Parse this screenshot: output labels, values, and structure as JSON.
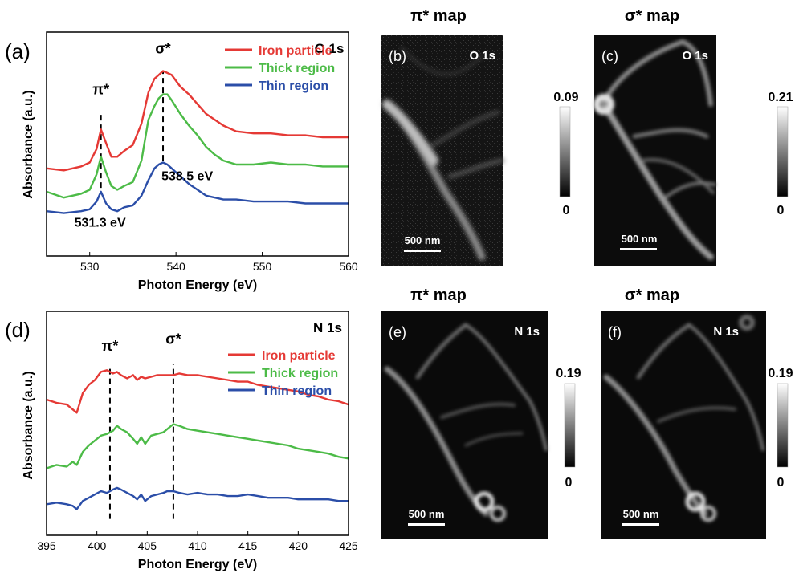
{
  "chart_data": [
    {
      "id": "a",
      "type": "line",
      "panel_label": "(a)",
      "edge_label": "O 1s",
      "xlabel": "Photon Energy (eV)",
      "ylabel": "Absorbance (a.u.)",
      "xlim": [
        525,
        560
      ],
      "xticks": [
        530,
        540,
        550,
        560
      ],
      "legend_position": "top-right",
      "series": [
        {
          "name": "Iron particle",
          "color": "#e53935",
          "x": [
            525,
            527,
            529,
            530,
            530.8,
            531.3,
            531.9,
            532.5,
            533.2,
            534,
            535,
            536,
            536.8,
            537.5,
            538,
            538.5,
            539,
            539.5,
            540.5,
            541.5,
            542.5,
            543.5,
            544.5,
            545.5,
            547,
            549,
            551,
            553,
            555,
            557,
            560
          ],
          "y": [
            0.6,
            0.59,
            0.61,
            0.63,
            0.7,
            0.8,
            0.73,
            0.66,
            0.66,
            0.69,
            0.72,
            0.83,
            0.99,
            1.06,
            1.08,
            1.1,
            1.09,
            1.08,
            1.02,
            0.98,
            0.93,
            0.88,
            0.85,
            0.82,
            0.79,
            0.78,
            0.78,
            0.77,
            0.77,
            0.76,
            0.76
          ]
        },
        {
          "name": "Thick region",
          "color": "#4cbb47",
          "x": [
            525,
            527,
            529,
            530,
            530.8,
            531.3,
            531.9,
            532.5,
            533.2,
            534,
            535,
            536,
            536.8,
            537.5,
            538,
            538.5,
            539,
            539.5,
            540.5,
            541.5,
            542.5,
            543.5,
            544.5,
            545.5,
            547,
            549,
            551,
            553,
            555,
            557,
            560
          ],
          "y": [
            0.48,
            0.45,
            0.47,
            0.49,
            0.57,
            0.66,
            0.58,
            0.51,
            0.49,
            0.51,
            0.53,
            0.64,
            0.85,
            0.92,
            0.96,
            0.98,
            0.98,
            0.95,
            0.88,
            0.82,
            0.77,
            0.71,
            0.67,
            0.64,
            0.62,
            0.62,
            0.63,
            0.62,
            0.62,
            0.61,
            0.61
          ]
        },
        {
          "name": "Thin region",
          "color": "#2b4ea8",
          "x": [
            525,
            527,
            529,
            530,
            530.8,
            531.3,
            531.9,
            532.5,
            533.2,
            534,
            535,
            536,
            536.8,
            537.5,
            538,
            538.5,
            539,
            539.5,
            540.5,
            541.5,
            542.5,
            543.5,
            544.5,
            545.5,
            547,
            549,
            551,
            553,
            555,
            557,
            560
          ],
          "y": [
            0.38,
            0.37,
            0.38,
            0.39,
            0.43,
            0.48,
            0.42,
            0.39,
            0.38,
            0.4,
            0.41,
            0.46,
            0.54,
            0.6,
            0.62,
            0.63,
            0.62,
            0.6,
            0.56,
            0.52,
            0.49,
            0.46,
            0.45,
            0.44,
            0.44,
            0.43,
            0.43,
            0.43,
            0.42,
            0.42,
            0.42
          ]
        }
      ],
      "annotations": [
        {
          "text": "π*",
          "x": 531.3,
          "line_from": 0.5,
          "line_to": 0.88,
          "label_y": 0.98
        },
        {
          "text": "σ*",
          "x": 538.5,
          "line_from": 0.64,
          "line_to": 1.1,
          "label_y": 1.19
        }
      ],
      "value_labels": [
        {
          "text": "531.3 eV",
          "x": 531.2,
          "y": 0.3
        },
        {
          "text": "538.5 eV",
          "x": 541.3,
          "y": 0.54
        }
      ]
    },
    {
      "id": "d",
      "type": "line",
      "panel_label": "(d)",
      "edge_label": "N 1s",
      "xlabel": "Photon Energy (eV)",
      "ylabel": "Absorbance (a.u.)",
      "xlim": [
        395,
        425
      ],
      "xticks": [
        395,
        400,
        405,
        410,
        415,
        420,
        425
      ],
      "legend_position": "top-right",
      "series": [
        {
          "name": "Iron particle",
          "color": "#e53935",
          "x": [
            395,
            396,
            397,
            397.6,
            398,
            398.6,
            399.2,
            399.8,
            400.4,
            401,
            401.6,
            402,
            402.4,
            403,
            403.6,
            404,
            404.4,
            404.8,
            405.4,
            406,
            406.6,
            407,
            407.6,
            408.2,
            409,
            410,
            411,
            412,
            413,
            414,
            415,
            416,
            417,
            418,
            419,
            420,
            421,
            422,
            423,
            424,
            425
          ],
          "y": [
            0.78,
            0.76,
            0.75,
            0.72,
            0.7,
            0.82,
            0.87,
            0.9,
            0.95,
            0.96,
            0.94,
            0.95,
            0.93,
            0.91,
            0.93,
            0.9,
            0.92,
            0.91,
            0.92,
            0.93,
            0.93,
            0.93,
            0.93,
            0.94,
            0.93,
            0.93,
            0.92,
            0.91,
            0.9,
            0.89,
            0.89,
            0.87,
            0.86,
            0.85,
            0.84,
            0.83,
            0.81,
            0.8,
            0.78,
            0.77,
            0.75
          ]
        },
        {
          "name": "Thick region",
          "color": "#4cbb47",
          "x": [
            395,
            396,
            397,
            397.6,
            398,
            398.6,
            399.2,
            399.8,
            400.4,
            401,
            401.6,
            402,
            402.4,
            403,
            403.6,
            404,
            404.4,
            404.8,
            405.4,
            406,
            406.6,
            407,
            407.6,
            408.2,
            409,
            410,
            411,
            412,
            413,
            414,
            415,
            416,
            417,
            418,
            419,
            420,
            421,
            422,
            423,
            424,
            425
          ],
          "y": [
            0.36,
            0.38,
            0.37,
            0.4,
            0.38,
            0.46,
            0.5,
            0.53,
            0.56,
            0.57,
            0.59,
            0.62,
            0.6,
            0.58,
            0.54,
            0.51,
            0.55,
            0.51,
            0.56,
            0.57,
            0.58,
            0.6,
            0.63,
            0.62,
            0.6,
            0.59,
            0.58,
            0.57,
            0.56,
            0.55,
            0.54,
            0.53,
            0.52,
            0.51,
            0.5,
            0.48,
            0.47,
            0.46,
            0.45,
            0.43,
            0.42
          ]
        },
        {
          "name": "Thin region",
          "color": "#2b4ea8",
          "x": [
            395,
            396,
            397,
            397.6,
            398,
            398.6,
            399.2,
            399.8,
            400.4,
            401,
            401.6,
            402,
            402.4,
            403,
            403.6,
            404,
            404.4,
            404.8,
            405.4,
            406,
            406.6,
            407,
            407.6,
            408.2,
            409,
            410,
            411,
            412,
            413,
            414,
            415,
            416,
            417,
            418,
            419,
            420,
            421,
            422,
            423,
            424,
            425
          ],
          "y": [
            0.14,
            0.15,
            0.14,
            0.13,
            0.11,
            0.16,
            0.18,
            0.2,
            0.22,
            0.21,
            0.23,
            0.24,
            0.23,
            0.21,
            0.19,
            0.17,
            0.2,
            0.16,
            0.19,
            0.2,
            0.21,
            0.22,
            0.22,
            0.21,
            0.2,
            0.21,
            0.2,
            0.2,
            0.19,
            0.19,
            0.2,
            0.19,
            0.18,
            0.18,
            0.18,
            0.17,
            0.17,
            0.17,
            0.17,
            0.16,
            0.16
          ]
        }
      ],
      "annotations": [
        {
          "text": "π*",
          "x": 401.3,
          "line_from": 0.05,
          "line_to": 0.98,
          "label_y": 1.08
        },
        {
          "text": "σ*",
          "x": 407.6,
          "line_from": 0.05,
          "line_to": 1.0,
          "label_y": 1.12
        }
      ],
      "value_labels": []
    }
  ],
  "maps": [
    {
      "id": "b",
      "title": "π* map",
      "panel_label": "(b)",
      "edge_label": "O 1s",
      "scalebar_label": "500 nm",
      "colorbar_max": "0.09",
      "colorbar_min": "0"
    },
    {
      "id": "c",
      "title": "σ* map",
      "panel_label": "(c)",
      "edge_label": "O 1s",
      "scalebar_label": "500 nm",
      "colorbar_max": "0.21",
      "colorbar_min": "0"
    },
    {
      "id": "e",
      "title": "π* map",
      "panel_label": "(e)",
      "edge_label": "N 1s",
      "scalebar_label": "500 nm",
      "colorbar_max": "0.19",
      "colorbar_min": "0"
    },
    {
      "id": "f",
      "title": "σ* map",
      "panel_label": "(f)",
      "edge_label": "N 1s",
      "scalebar_label": "500 nm",
      "colorbar_max": "0.19",
      "colorbar_min": "0"
    }
  ]
}
